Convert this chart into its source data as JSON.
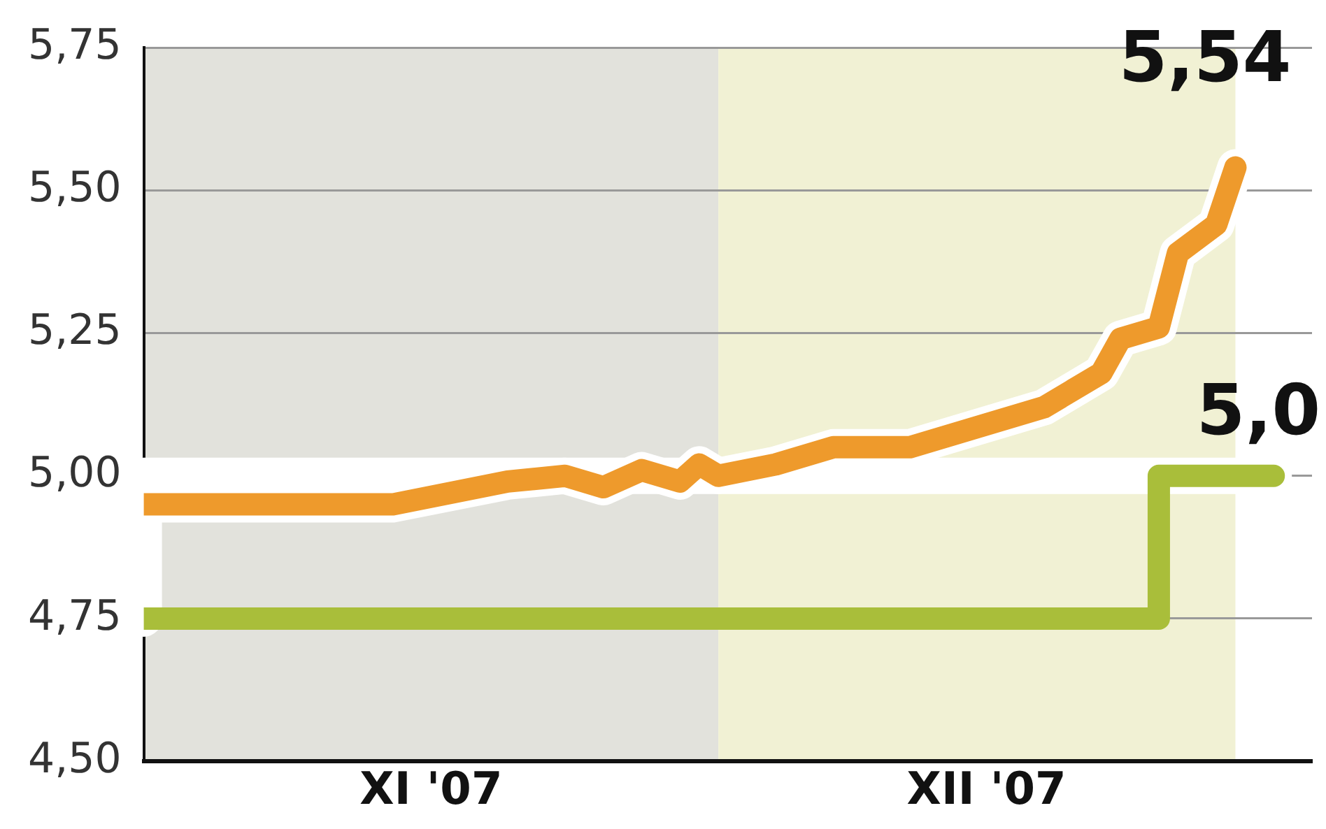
{
  "chart_data": {
    "type": "line",
    "ylim": [
      4.5,
      5.75
    ],
    "yticks": [
      {
        "value": 4.5,
        "label": "4,50"
      },
      {
        "value": 4.75,
        "label": "4,75"
      },
      {
        "value": 5,
        "label": "5,00"
      },
      {
        "value": 5.25,
        "label": "5,25"
      },
      {
        "value": 5.5,
        "label": "5,50"
      },
      {
        "value": 5.75,
        "label": "5,75"
      }
    ],
    "xlim": [
      "2007-11-01",
      "2008-01-01"
    ],
    "xticks": [
      {
        "value": "2007-11-16",
        "label": "XI '07"
      },
      {
        "value": "2007-12-15",
        "label": "XII '07"
      }
    ],
    "grid": "y",
    "legend": false,
    "marker": "none",
    "bands": [
      {
        "axis": "x",
        "from": "2007-11-01",
        "to": "2007-12-01",
        "color": "#e2e2dc"
      },
      {
        "axis": "x",
        "from": "2007-12-01",
        "to": "2007-12-28",
        "color": "#f1f1d4"
      }
    ],
    "series": [
      {
        "type": "line",
        "color": "#ee9a2c",
        "x": [
          "2007-11-01",
          "2007-11-14",
          "2007-11-20",
          "2007-11-23",
          "2007-11-25",
          "2007-11-27",
          "2007-11-29",
          "2007-11-30",
          "2007-12-01",
          "2007-12-04",
          "2007-12-07",
          "2007-12-11",
          "2007-12-15",
          "2007-12-18",
          "2007-12-21",
          "2007-12-22",
          "2007-12-24",
          "2007-12-25",
          "2007-12-27",
          "2007-12-28"
        ],
        "values": [
          4.95,
          4.95,
          4.99,
          5.0,
          4.98,
          5.01,
          4.99,
          5.02,
          5.0,
          5.02,
          5.05,
          5.05,
          5.09,
          5.12,
          5.18,
          5.24,
          5.26,
          5.39,
          5.44,
          5.54
        ]
      },
      {
        "type": "step",
        "color": "#a9be3a",
        "x": [
          "2007-11-01",
          "2007-12-24",
          "2007-12-30"
        ],
        "values": [
          4.75,
          5.0,
          5.0
        ]
      }
    ],
    "annotations": [
      {
        "text": "5,54",
        "x": "2007-12-28",
        "y": 5.54
      },
      {
        "text": "5,0",
        "x": "2007-12-30",
        "y": 5.0
      }
    ]
  }
}
